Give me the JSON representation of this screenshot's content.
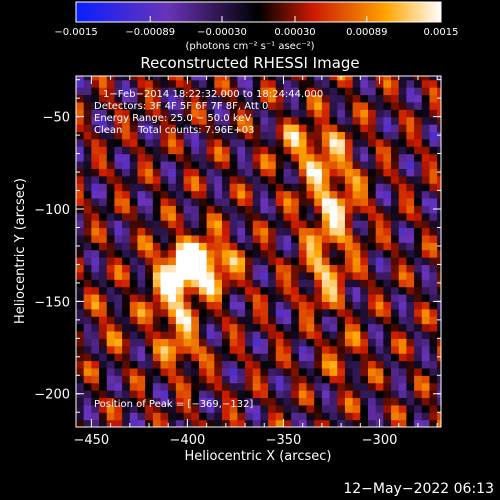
{
  "chart_data": {
    "type": "heatmap",
    "title": "Reconstructed RHESSI Image",
    "xlabel": "Heliocentric X (arcsec)",
    "ylabel": "Heliocentric Y (arcsec)",
    "xlim": [
      -458,
      -268
    ],
    "ylim": [
      -218,
      -28
    ],
    "x_ticks": [
      -450,
      -400,
      -350,
      -300
    ],
    "y_ticks": [
      -50,
      -100,
      -150,
      -200
    ],
    "x_tick_labels": [
      "−450",
      "−400",
      "−350",
      "−300"
    ],
    "y_tick_labels": [
      "−50",
      "−100",
      "−150",
      "−200"
    ],
    "colorbar": {
      "range": [
        -0.0015,
        0.0015
      ],
      "ticks": [
        -0.0015,
        -0.00089,
        -0.0003,
        0.0003,
        0.00089,
        0.0015
      ],
      "tick_labels": [
        "−0.0015",
        "−0.00089",
        "−0.00030",
        "0.00030",
        "0.00089",
        "0.0015"
      ],
      "unit_label": "(photons cm⁻² s⁻¹ asec⁻²)"
    },
    "annotations": [
      "1−Feb−2014 18:22:32.000 to 18:24:44.000",
      "Detectors: 3F 4F 5F 6F 7F 8F, Att 0",
      "Energy Range: 25.0 − 50.0 keV",
      "Clean     Total counts: 7.96E+03"
    ],
    "peak_label": "Position of Peak = [−369,−132]",
    "peak": [
      -369,
      -132
    ],
    "timestamp": "12−May−2022 06:13",
    "grid": false,
    "colors": {
      "min": "#0a1fff",
      "low_mid": "#6a33b8",
      "zero": "#000000",
      "mid": "#cc1a00",
      "high": "#ffa500",
      "max": "#ffffff"
    }
  }
}
